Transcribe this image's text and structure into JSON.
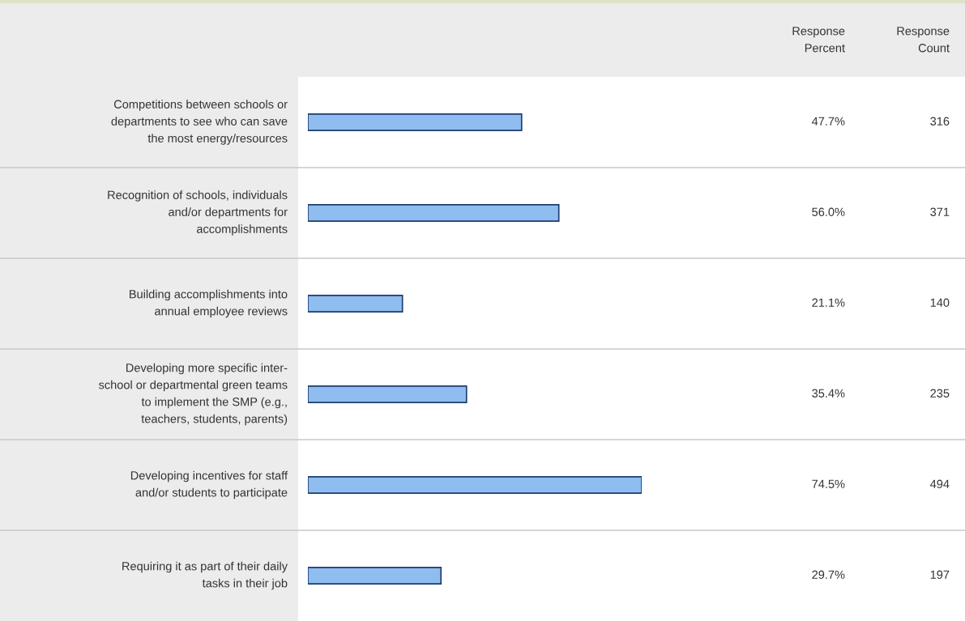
{
  "chart_data": {
    "type": "bar",
    "orientation": "horizontal",
    "categories": [
      "Competitions between schools or\ndepartments to see who can save\nthe most energy/resources",
      "Recognition of schools, individuals\nand/or departments for\naccomplishments",
      "Building accomplishments into\nannual employee reviews",
      "Developing more specific inter-\nschool or departmental green teams\nto implement the SMP (e.g.,\nteachers, students, parents)",
      "Developing incentives for staff\nand/or students to participate",
      "Requiring it as part of their daily\ntasks in their job"
    ],
    "series": [
      {
        "color": "#8fbdf0",
        "values": [
          47.7,
          56.0,
          21.1,
          35.4,
          74.5,
          29.7
        ],
        "value_labels": [
          "47.7%",
          "56.0%",
          "21.1%",
          "35.4%",
          "74.5%",
          "29.7%"
        ]
      }
    ],
    "annotations": [
      "Response\nPercent",
      "Response\nCount",
      "316",
      "371",
      "140",
      "235",
      "494",
      "197"
    ],
    "legend": false
  }
}
